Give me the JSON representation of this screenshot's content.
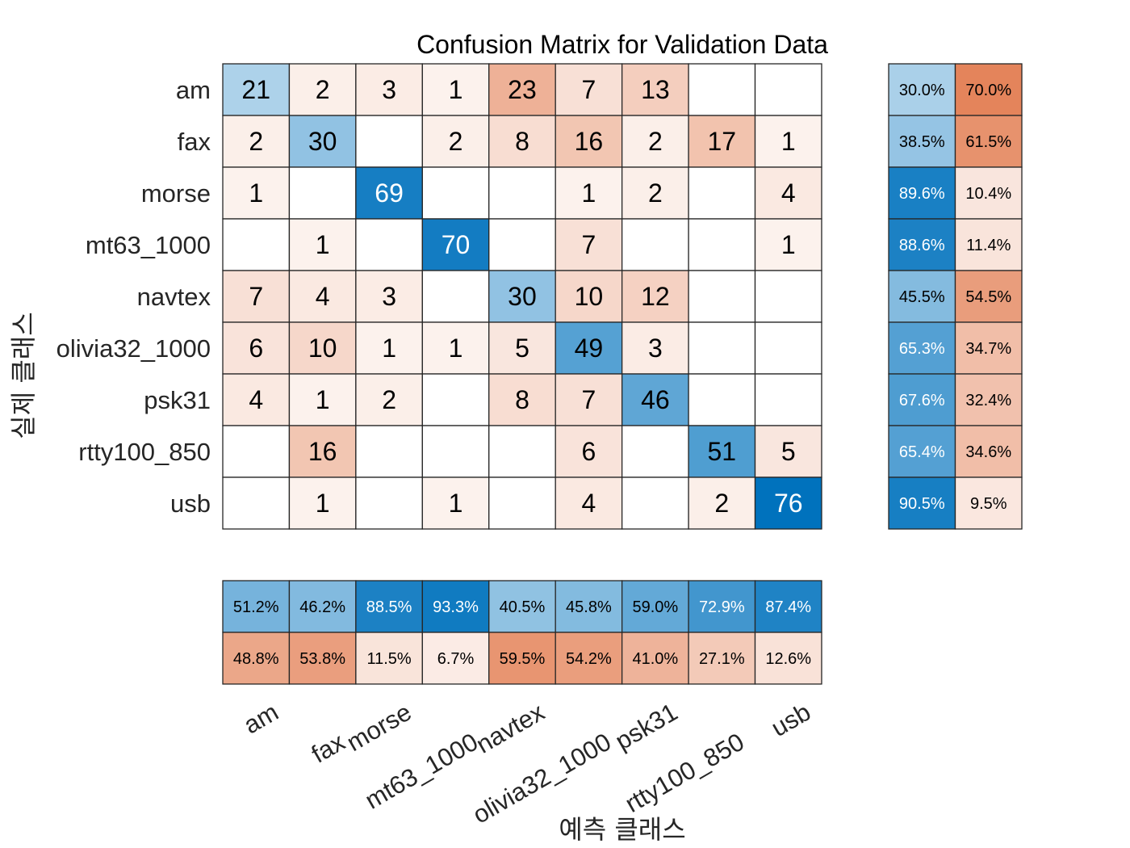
{
  "chart_data": {
    "type": "heatmap",
    "title": "Confusion Matrix for Validation Data",
    "xlabel": "예측 클래스",
    "ylabel": "실제 클래스",
    "classes": [
      "am",
      "fax",
      "morse",
      "mt63_1000",
      "navtex",
      "olivia32_1000",
      "psk31",
      "rtty100_850",
      "usb"
    ],
    "matrix": [
      [
        21,
        2,
        3,
        1,
        23,
        7,
        13,
        0,
        0
      ],
      [
        2,
        30,
        0,
        2,
        8,
        16,
        2,
        17,
        1
      ],
      [
        1,
        0,
        69,
        0,
        0,
        1,
        2,
        0,
        4
      ],
      [
        0,
        1,
        0,
        70,
        0,
        7,
        0,
        0,
        1
      ],
      [
        7,
        4,
        3,
        0,
        30,
        10,
        12,
        0,
        0
      ],
      [
        6,
        10,
        1,
        1,
        5,
        49,
        3,
        0,
        0
      ],
      [
        4,
        1,
        2,
        0,
        8,
        7,
        46,
        0,
        0
      ],
      [
        0,
        16,
        0,
        0,
        0,
        6,
        0,
        51,
        5
      ],
      [
        0,
        1,
        0,
        1,
        0,
        4,
        0,
        2,
        76
      ]
    ],
    "row_summary": {
      "correct": [
        "30.0%",
        "38.5%",
        "89.6%",
        "88.6%",
        "45.5%",
        "65.3%",
        "67.6%",
        "65.4%",
        "90.5%"
      ],
      "incorrect": [
        "70.0%",
        "61.5%",
        "10.4%",
        "11.4%",
        "54.5%",
        "34.7%",
        "32.4%",
        "34.6%",
        "9.5%"
      ]
    },
    "column_summary": {
      "correct": [
        "51.2%",
        "46.2%",
        "88.5%",
        "93.3%",
        "40.5%",
        "45.8%",
        "59.0%",
        "72.9%",
        "87.4%"
      ],
      "incorrect": [
        "48.8%",
        "53.8%",
        "11.5%",
        "6.7%",
        "59.5%",
        "54.2%",
        "41.0%",
        "27.1%",
        "12.6%"
      ]
    },
    "colors": {
      "correct": "#0072bd",
      "incorrect": "#d95319",
      "grid": "#262626",
      "text_dark": "#000000",
      "text_light": "#ffffff"
    }
  }
}
